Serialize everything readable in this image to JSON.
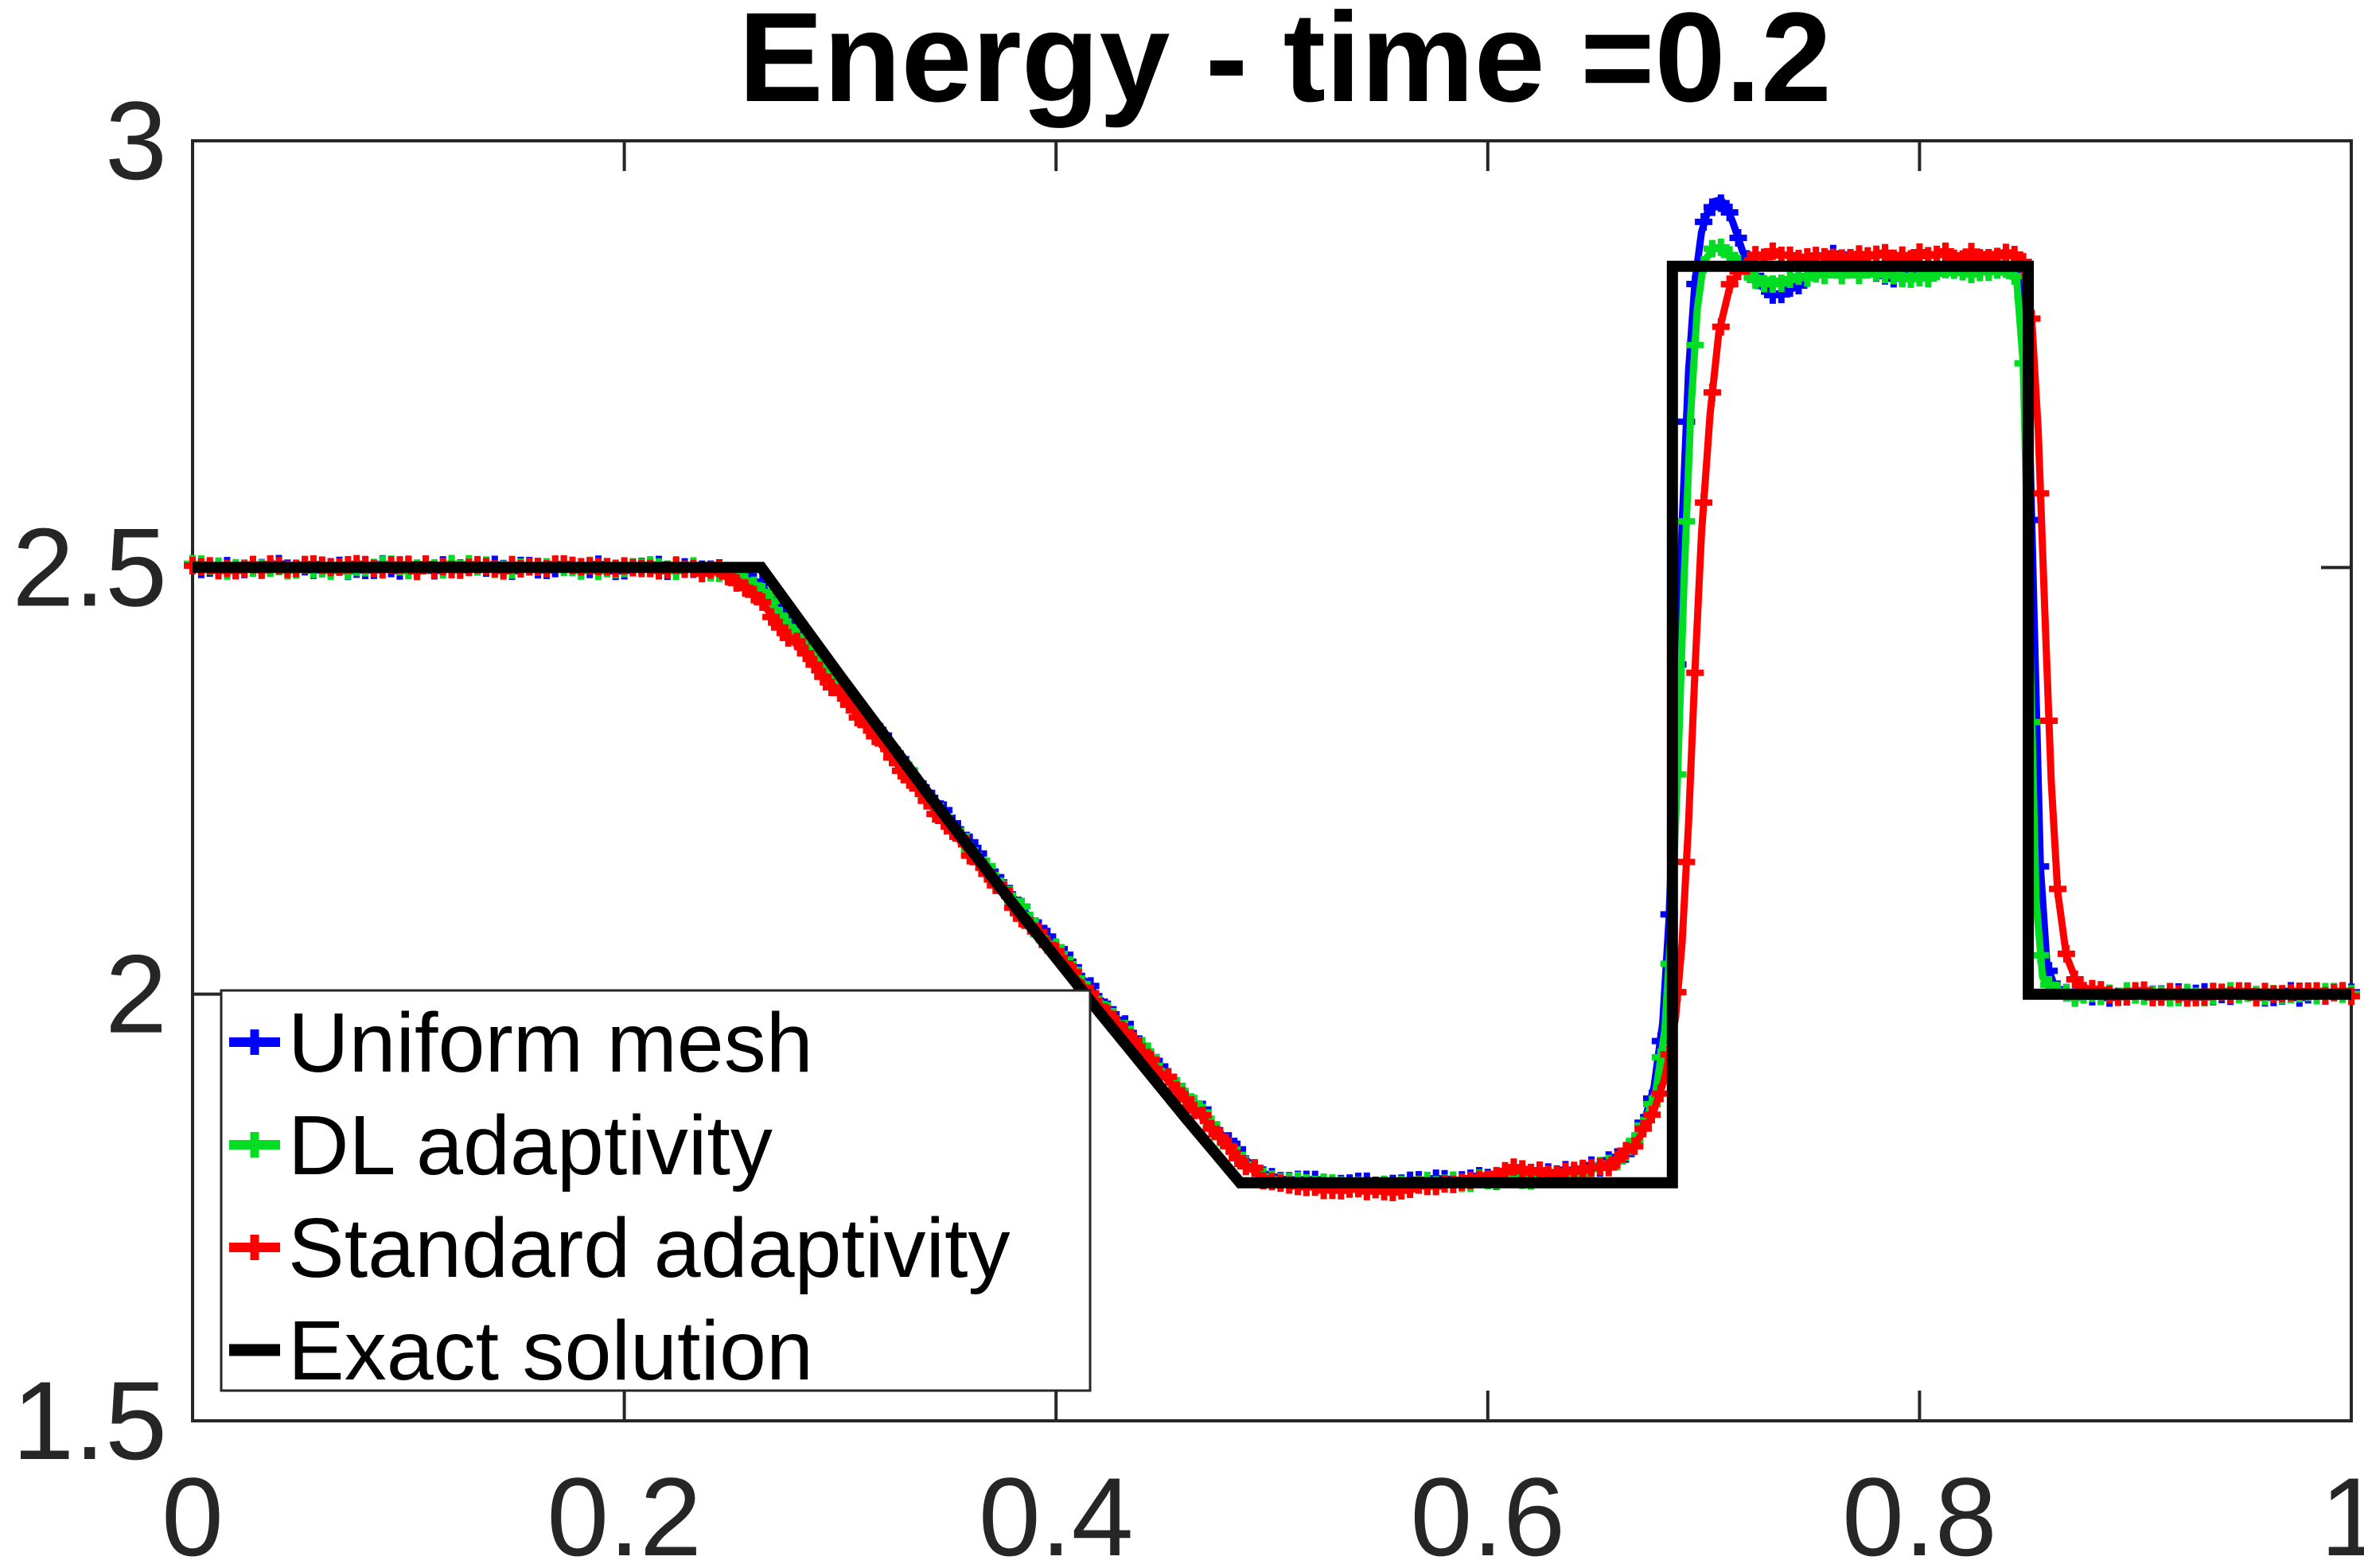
{
  "chart_data": {
    "type": "line",
    "title": "Energy - time =0.2",
    "xlabel": "",
    "ylabel": "",
    "xlim": [
      0,
      1
    ],
    "ylim": [
      1.5,
      3
    ],
    "grid": false,
    "legend_position": "southwest",
    "axis_color": "#262626",
    "xticks": {
      "values": [
        0,
        0.2,
        0.4,
        0.6,
        0.8,
        1
      ],
      "labels": [
        "0",
        "0.2",
        "0.4",
        "0.6",
        "0.8",
        "1"
      ]
    },
    "yticks": {
      "values": [
        1.5,
        2,
        2.5,
        3
      ],
      "labels": [
        "1.5",
        "2",
        "2.5",
        "3"
      ]
    },
    "series": [
      {
        "name": "Uniform mesh",
        "color": "#0000ff",
        "marker": "plus",
        "marker_step": 0.004,
        "line_width": 9,
        "points": [
          [
            0,
            2.5
          ],
          [
            0.04,
            2.5
          ],
          [
            0.08,
            2.5
          ],
          [
            0.12,
            2.5
          ],
          [
            0.16,
            2.5
          ],
          [
            0.2,
            2.5
          ],
          [
            0.235,
            2.499
          ],
          [
            0.252,
            2.496
          ],
          [
            0.263,
            2.481
          ],
          [
            0.276,
            2.439
          ],
          [
            0.3,
            2.362
          ],
          [
            0.33,
            2.268
          ],
          [
            0.36,
            2.175
          ],
          [
            0.39,
            2.083
          ],
          [
            0.42,
            1.995
          ],
          [
            0.45,
            1.91
          ],
          [
            0.47,
            1.855
          ],
          [
            0.485,
            1.812
          ],
          [
            0.495,
            1.791
          ],
          [
            0.505,
            1.783
          ],
          [
            0.52,
            1.779
          ],
          [
            0.54,
            1.776
          ],
          [
            0.56,
            1.777
          ],
          [
            0.58,
            1.781
          ],
          [
            0.6,
            1.784
          ],
          [
            0.62,
            1.787
          ],
          [
            0.64,
            1.791
          ],
          [
            0.655,
            1.801
          ],
          [
            0.665,
            1.818
          ],
          [
            0.672,
            1.846
          ],
          [
            0.677,
            1.891
          ],
          [
            0.681,
            1.966
          ],
          [
            0.684,
            2.09
          ],
          [
            0.687,
            2.3
          ],
          [
            0.69,
            2.55
          ],
          [
            0.693,
            2.73
          ],
          [
            0.696,
            2.835
          ],
          [
            0.699,
            2.893
          ],
          [
            0.702,
            2.918
          ],
          [
            0.705,
            2.929
          ],
          [
            0.708,
            2.931
          ],
          [
            0.711,
            2.921
          ],
          [
            0.714,
            2.901
          ],
          [
            0.718,
            2.871
          ],
          [
            0.722,
            2.847
          ],
          [
            0.727,
            2.829
          ],
          [
            0.733,
            2.82
          ],
          [
            0.739,
            2.823
          ],
          [
            0.746,
            2.837
          ],
          [
            0.753,
            2.853
          ],
          [
            0.759,
            2.863
          ],
          [
            0.766,
            2.866
          ],
          [
            0.774,
            2.856
          ],
          [
            0.782,
            2.845
          ],
          [
            0.79,
            2.84
          ],
          [
            0.798,
            2.844
          ],
          [
            0.808,
            2.851
          ],
          [
            0.82,
            2.855
          ],
          [
            0.832,
            2.854
          ],
          [
            0.841,
            2.85
          ],
          [
            0.847,
            2.84
          ],
          [
            0.85,
            2.76
          ],
          [
            0.853,
            2.45
          ],
          [
            0.856,
            2.15
          ],
          [
            0.859,
            2.035
          ],
          [
            0.863,
            2.006
          ],
          [
            0.868,
            2.001
          ],
          [
            0.88,
            2.0
          ],
          [
            0.92,
            2.0
          ],
          [
            0.96,
            2.0
          ],
          [
            1,
            2.0
          ]
        ]
      },
      {
        "name": "DL adaptivity",
        "color": "#00dd22",
        "marker": "plus",
        "marker_step": 0.004,
        "line_width": 9,
        "points": [
          [
            0,
            2.5
          ],
          [
            0.04,
            2.5
          ],
          [
            0.08,
            2.5
          ],
          [
            0.12,
            2.5
          ],
          [
            0.16,
            2.5
          ],
          [
            0.2,
            2.5
          ],
          [
            0.235,
            2.499
          ],
          [
            0.25,
            2.495
          ],
          [
            0.262,
            2.478
          ],
          [
            0.275,
            2.436
          ],
          [
            0.3,
            2.358
          ],
          [
            0.33,
            2.264
          ],
          [
            0.36,
            2.171
          ],
          [
            0.39,
            2.08
          ],
          [
            0.42,
            1.992
          ],
          [
            0.45,
            1.907
          ],
          [
            0.47,
            1.852
          ],
          [
            0.485,
            1.809
          ],
          [
            0.495,
            1.788
          ],
          [
            0.505,
            1.78
          ],
          [
            0.52,
            1.776
          ],
          [
            0.54,
            1.773
          ],
          [
            0.56,
            1.775
          ],
          [
            0.58,
            1.779
          ],
          [
            0.6,
            1.782
          ],
          [
            0.62,
            1.785
          ],
          [
            0.64,
            1.789
          ],
          [
            0.655,
            1.799
          ],
          [
            0.665,
            1.816
          ],
          [
            0.672,
            1.843
          ],
          [
            0.678,
            1.888
          ],
          [
            0.682,
            1.958
          ],
          [
            0.685,
            2.08
          ],
          [
            0.688,
            2.26
          ],
          [
            0.691,
            2.49
          ],
          [
            0.694,
            2.68
          ],
          [
            0.697,
            2.802
          ],
          [
            0.7,
            2.858
          ],
          [
            0.704,
            2.872
          ],
          [
            0.708,
            2.876
          ],
          [
            0.712,
            2.867
          ],
          [
            0.716,
            2.853
          ],
          [
            0.721,
            2.843
          ],
          [
            0.728,
            2.837
          ],
          [
            0.736,
            2.835
          ],
          [
            0.745,
            2.839
          ],
          [
            0.755,
            2.844
          ],
          [
            0.768,
            2.846
          ],
          [
            0.782,
            2.843
          ],
          [
            0.796,
            2.841
          ],
          [
            0.812,
            2.845
          ],
          [
            0.828,
            2.847
          ],
          [
            0.84,
            2.846
          ],
          [
            0.845,
            2.837
          ],
          [
            0.848,
            2.74
          ],
          [
            0.851,
            2.43
          ],
          [
            0.854,
            2.11
          ],
          [
            0.857,
            2.02
          ],
          [
            0.861,
            2.003
          ],
          [
            0.868,
            2.0
          ],
          [
            0.92,
            2.0
          ],
          [
            0.96,
            2.0
          ],
          [
            1,
            2.0
          ]
        ]
      },
      {
        "name": "Standard adaptivity",
        "color": "#ff0000",
        "marker": "plus",
        "marker_step": 0.004,
        "line_width": 9,
        "points": [
          [
            0,
            2.5
          ],
          [
            0.04,
            2.5
          ],
          [
            0.08,
            2.5
          ],
          [
            0.12,
            2.5
          ],
          [
            0.16,
            2.5
          ],
          [
            0.2,
            2.5
          ],
          [
            0.232,
            2.499
          ],
          [
            0.248,
            2.493
          ],
          [
            0.259,
            2.474
          ],
          [
            0.273,
            2.429
          ],
          [
            0.3,
            2.352
          ],
          [
            0.33,
            2.258
          ],
          [
            0.36,
            2.166
          ],
          [
            0.39,
            2.075
          ],
          [
            0.42,
            1.988
          ],
          [
            0.45,
            1.904
          ],
          [
            0.47,
            1.849
          ],
          [
            0.485,
            1.806
          ],
          [
            0.495,
            1.786
          ],
          [
            0.505,
            1.779
          ],
          [
            0.52,
            1.775
          ],
          [
            0.54,
            1.771
          ],
          [
            0.56,
            1.772
          ],
          [
            0.578,
            1.778
          ],
          [
            0.6,
            1.788
          ],
          [
            0.615,
            1.794
          ],
          [
            0.63,
            1.791
          ],
          [
            0.645,
            1.793
          ],
          [
            0.658,
            1.803
          ],
          [
            0.668,
            1.823
          ],
          [
            0.676,
            1.856
          ],
          [
            0.682,
            1.902
          ],
          [
            0.687,
            1.972
          ],
          [
            0.69,
            2.06
          ],
          [
            0.693,
            2.2
          ],
          [
            0.696,
            2.38
          ],
          [
            0.699,
            2.54
          ],
          [
            0.703,
            2.68
          ],
          [
            0.707,
            2.775
          ],
          [
            0.712,
            2.828
          ],
          [
            0.718,
            2.853
          ],
          [
            0.725,
            2.864
          ],
          [
            0.735,
            2.867
          ],
          [
            0.748,
            2.863
          ],
          [
            0.76,
            2.867
          ],
          [
            0.772,
            2.863
          ],
          [
            0.784,
            2.867
          ],
          [
            0.796,
            2.864
          ],
          [
            0.808,
            2.867
          ],
          [
            0.82,
            2.865
          ],
          [
            0.832,
            2.867
          ],
          [
            0.842,
            2.866
          ],
          [
            0.848,
            2.856
          ],
          [
            0.852,
            2.79
          ],
          [
            0.855,
            2.66
          ],
          [
            0.858,
            2.45
          ],
          [
            0.861,
            2.25
          ],
          [
            0.864,
            2.12
          ],
          [
            0.868,
            2.045
          ],
          [
            0.873,
            2.013
          ],
          [
            0.88,
            2.003
          ],
          [
            0.89,
            2.001
          ],
          [
            0.92,
            2.0
          ],
          [
            0.96,
            2.0
          ],
          [
            1,
            2.0
          ]
        ]
      },
      {
        "name": "Exact solution",
        "color": "#000000",
        "marker": "none",
        "marker_step": 0,
        "line_width": 14,
        "points": [
          [
            0,
            2.5
          ],
          [
            0.2634,
            2.5
          ],
          [
            0.3,
            2.373
          ],
          [
            0.34,
            2.237
          ],
          [
            0.38,
            2.106
          ],
          [
            0.42,
            1.979
          ],
          [
            0.46,
            1.855
          ],
          [
            0.4853,
            1.779
          ],
          [
            0.6855,
            1.779
          ],
          [
            0.6855,
            2.853
          ],
          [
            0.8504,
            2.853
          ],
          [
            0.8504,
            2.0
          ],
          [
            1,
            2.0
          ]
        ]
      }
    ]
  }
}
